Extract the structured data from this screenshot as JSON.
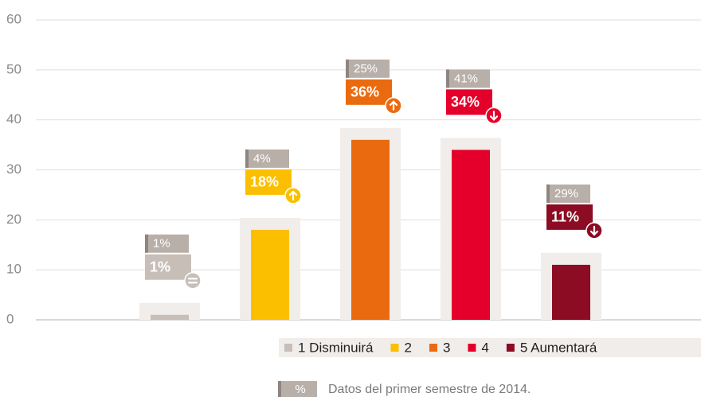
{
  "chart_data": {
    "type": "bar",
    "categories": [
      null,
      null,
      null,
      null,
      null
    ],
    "legend_labels": [
      "1 Disminuirá",
      "2",
      "3",
      "4",
      "5 Aumentará"
    ],
    "colors": [
      "#c8beb8",
      "#fbbf00",
      "#ea6a10",
      "#e4002b",
      "#8b0c23"
    ],
    "values": [
      1,
      18,
      36,
      34,
      11
    ],
    "value_labels": [
      "1%",
      "18%",
      "36%",
      "34%",
      "11%"
    ],
    "previous_values": [
      1,
      4,
      25,
      41,
      29
    ],
    "previous_value_labels": [
      "1%",
      "4%",
      "25%",
      "41%",
      "29%"
    ],
    "trends": [
      "equal",
      "up",
      "up",
      "down",
      "down"
    ],
    "ylim": [
      0,
      60
    ],
    "yticks": [
      0,
      10,
      20,
      30,
      40,
      50,
      60
    ],
    "grid": true,
    "note": {
      "marker": "%",
      "text": "Datos del primer semestre de 2014."
    }
  }
}
